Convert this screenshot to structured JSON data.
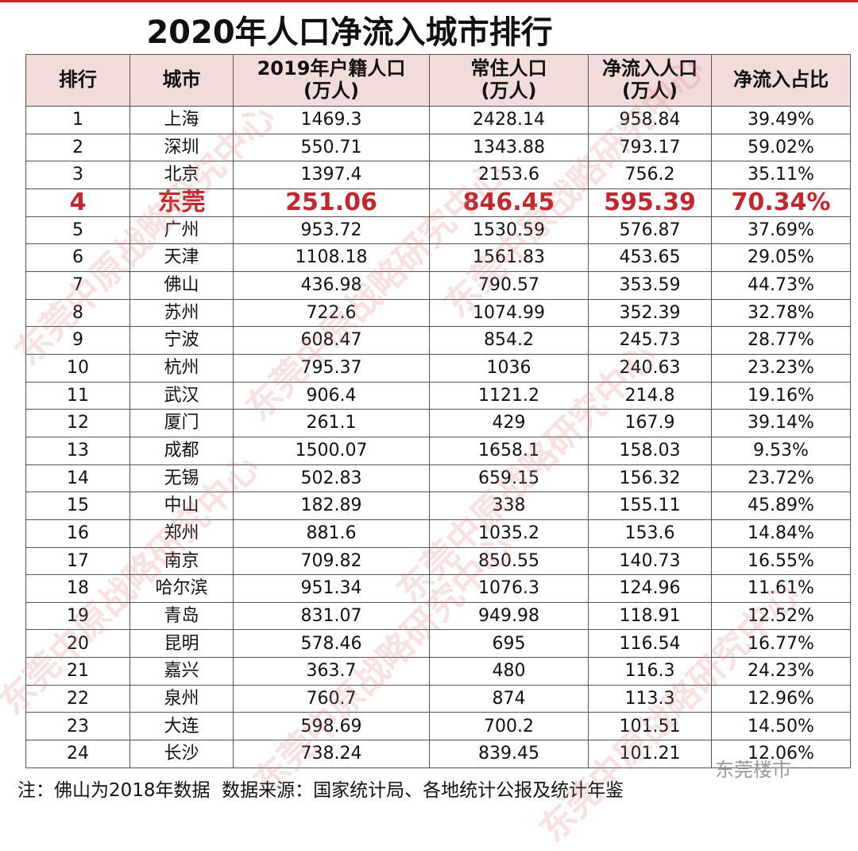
{
  "title": "2020年人口净流入城市排行",
  "table": {
    "header": [
      "排行",
      "城市",
      "2019年户籍人口\n(万人)",
      "常住人口\n(万人)",
      "净流入人口\n(万人)",
      "净流入占比"
    ],
    "rows": [
      [
        "1",
        "上海",
        "1469.3",
        "2428.14",
        "958.84",
        "39.49%"
      ],
      [
        "2",
        "深圳",
        "550.71",
        "1343.88",
        "793.17",
        "59.02%"
      ],
      [
        "3",
        "北京",
        "1397.4",
        "2153.6",
        "756.2",
        "35.11%"
      ],
      [
        "4",
        "东莞",
        "251.06",
        "846.45",
        "595.39",
        "70.34%"
      ],
      [
        "5",
        "广州",
        "953.72",
        "1530.59",
        "576.87",
        "37.69%"
      ],
      [
        "6",
        "天津",
        "1108.18",
        "1561.83",
        "453.65",
        "29.05%"
      ],
      [
        "7",
        "佛山",
        "436.98",
        "790.57",
        "353.59",
        "44.73%"
      ],
      [
        "8",
        "苏州",
        "722.6",
        "1074.99",
        "352.39",
        "32.78%"
      ],
      [
        "9",
        "宁波",
        "608.47",
        "854.2",
        "245.73",
        "28.77%"
      ],
      [
        "10",
        "杭州",
        "795.37",
        "1036",
        "240.63",
        "23.23%"
      ],
      [
        "11",
        "武汉",
        "906.4",
        "1121.2",
        "214.8",
        "19.16%"
      ],
      [
        "12",
        "厦门",
        "261.1",
        "429",
        "167.9",
        "39.14%"
      ],
      [
        "13",
        "成都",
        "1500.07",
        "1658.1",
        "158.03",
        "9.53%"
      ],
      [
        "14",
        "无锡",
        "502.83",
        "659.15",
        "156.32",
        "23.72%"
      ],
      [
        "15",
        "中山",
        "182.89",
        "338",
        "155.11",
        "45.89%"
      ],
      [
        "16",
        "郑州",
        "881.6",
        "1035.2",
        "153.6",
        "14.84%"
      ],
      [
        "17",
        "南京",
        "709.82",
        "850.55",
        "140.73",
        "16.55%"
      ],
      [
        "18",
        "哈尔滨",
        "951.34",
        "1076.3",
        "124.96",
        "11.61%"
      ],
      [
        "19",
        "青岛",
        "831.07",
        "949.98",
        "118.91",
        "12.52%"
      ],
      [
        "20",
        "昆明",
        "578.46",
        "695",
        "116.54",
        "16.77%"
      ],
      [
        "21",
        "嘉兴",
        "363.7",
        "480",
        "116.3",
        "24.23%"
      ],
      [
        "22",
        "泉州",
        "760.7",
        "874",
        "113.3",
        "12.96%"
      ],
      [
        "23",
        "大连",
        "598.69",
        "700.2",
        "101.51",
        "14.50%"
      ],
      [
        "24",
        "长沙",
        "738.24",
        "839.45",
        "101.21",
        "12.06%"
      ]
    ],
    "highlight_row": 3
  },
  "watermark": "东莞中原战略研究中心",
  "note": "注：佛山为2018年数据  数据来源：国家统计局、各地统计公报及统计年鉴",
  "logo": "东莞楼市"
}
